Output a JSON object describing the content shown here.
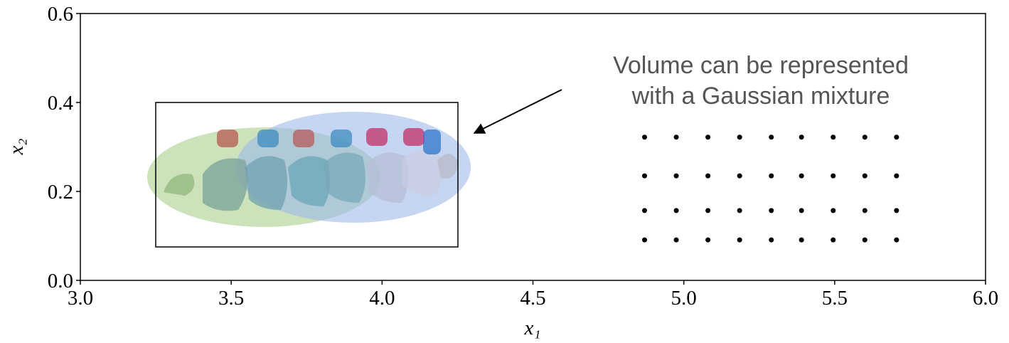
{
  "chart_data": {
    "type": "scatter",
    "xlabel": "x₁",
    "ylabel": "x₂",
    "annotation": [
      "Volume can be represented",
      "with a Gaussian mixture"
    ],
    "xlim": [
      3.0,
      6.0
    ],
    "xticks": [
      {
        "value": 3.0,
        "label": "3.0"
      },
      3.5,
      {
        "value": 4.0,
        "label": "4.0"
      },
      4.5,
      {
        "value": 5.0,
        "label": "5.0"
      },
      5.5,
      {
        "value": 6.0,
        "label": "6.0"
      }
    ],
    "ylim": [
      0.0,
      0.6
    ],
    "yticks": [
      {
        "value": 0.0,
        "label": "0.0"
      },
      0.2,
      0.4,
      0.6
    ],
    "color": "#000000",
    "x": [
      4.87,
      4.975,
      5.08,
      5.185,
      5.29,
      5.39,
      5.495,
      5.6,
      5.705,
      4.87,
      4.975,
      5.08,
      5.185,
      5.29,
      5.39,
      5.495,
      5.6,
      5.705,
      4.87,
      4.975,
      5.08,
      5.185,
      5.29,
      5.39,
      5.495,
      5.6,
      5.705,
      4.87,
      4.975,
      5.08,
      5.185,
      5.29,
      5.39,
      5.495,
      5.6,
      5.705
    ],
    "values": [
      0.322,
      0.322,
      0.322,
      0.322,
      0.322,
      0.322,
      0.322,
      0.322,
      0.322,
      0.235,
      0.235,
      0.235,
      0.235,
      0.235,
      0.235,
      0.235,
      0.235,
      0.235,
      0.157,
      0.157,
      0.157,
      0.157,
      0.157,
      0.157,
      0.157,
      0.157,
      0.157,
      0.091,
      0.091,
      0.091,
      0.091,
      0.091,
      0.091,
      0.091,
      0.091,
      0.091
    ]
  }
}
